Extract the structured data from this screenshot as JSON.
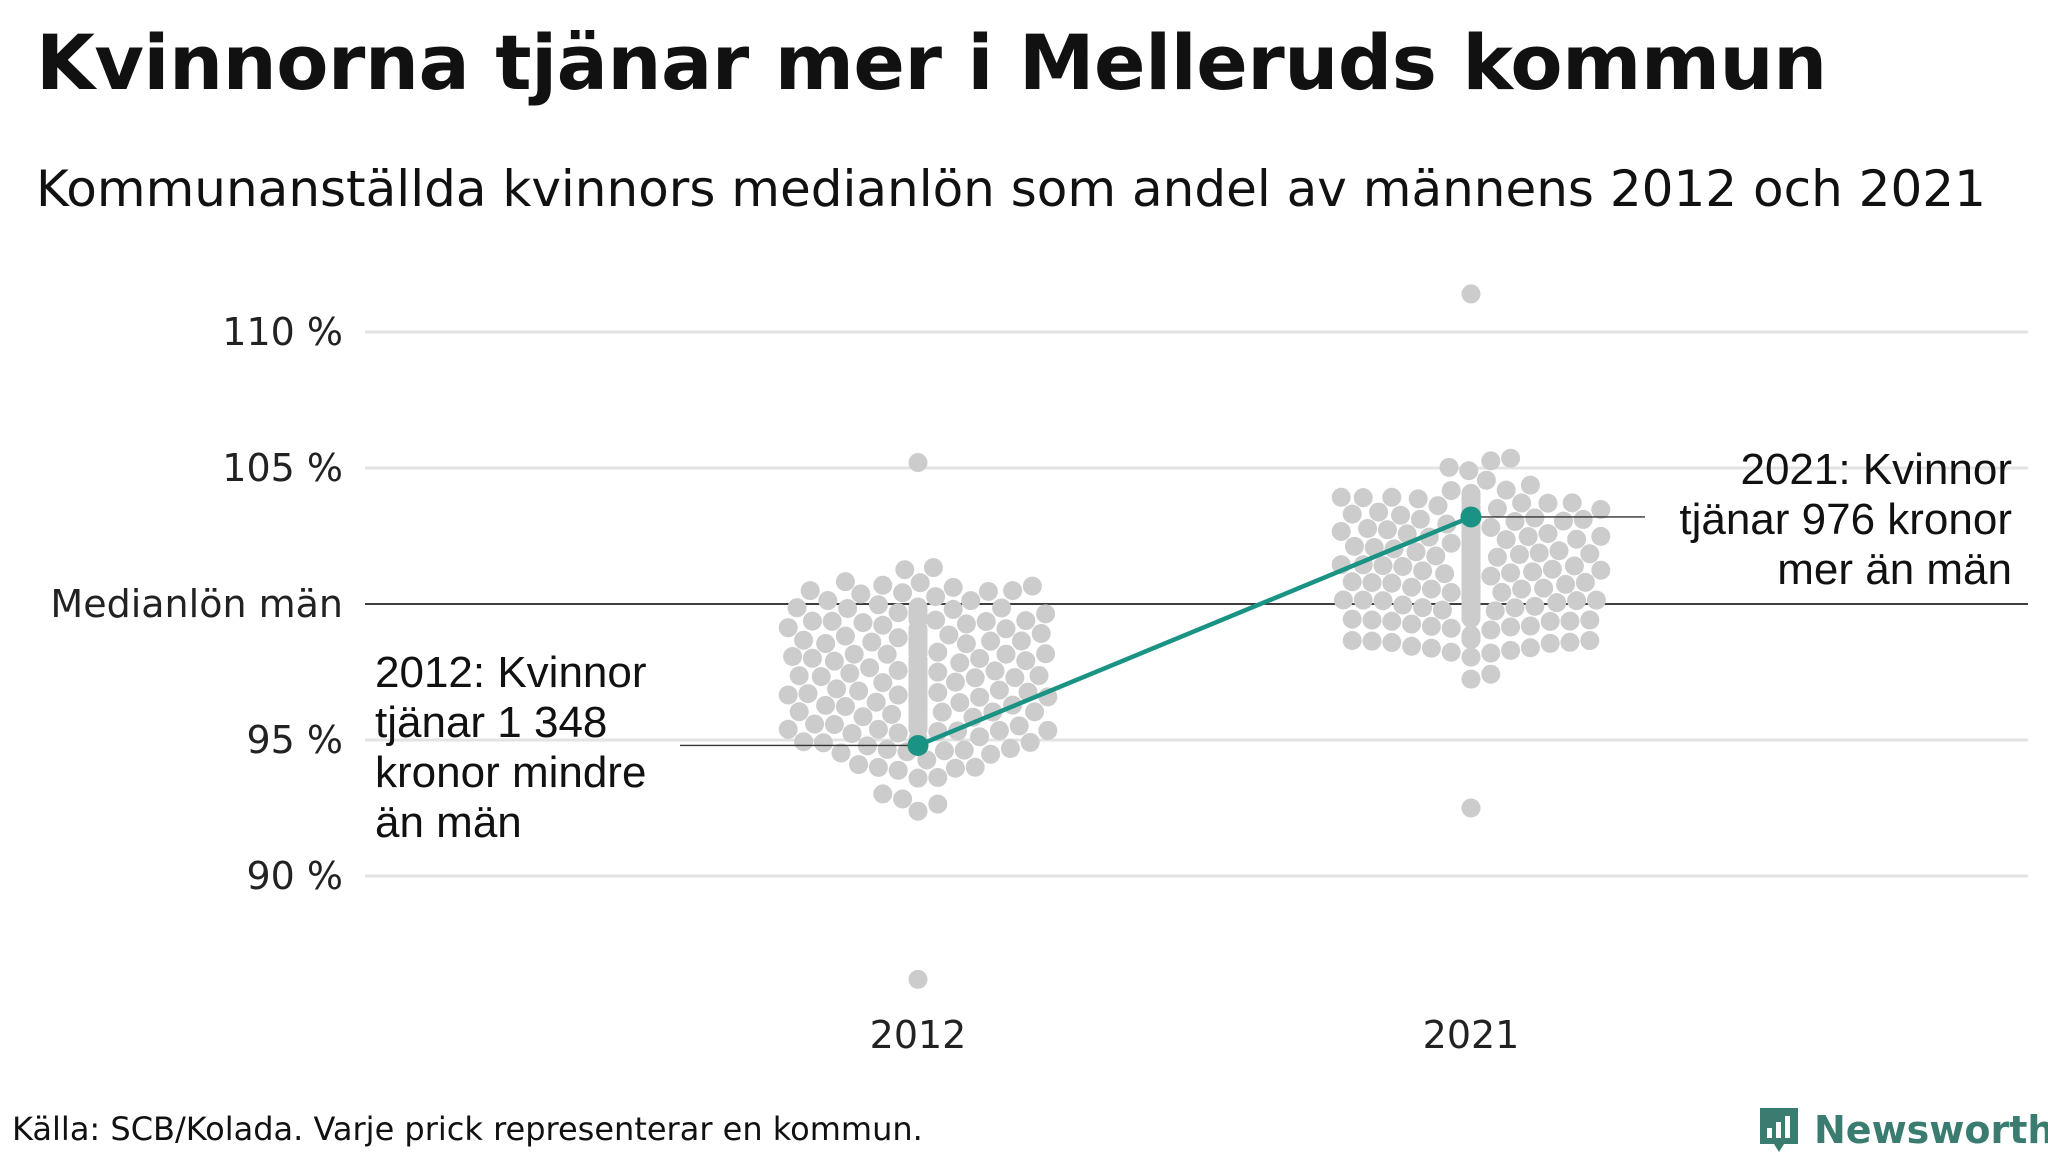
{
  "title": "Kvinnorna tjänar mer i Melleruds kommun",
  "subtitle": "Kommunanställda kvinnors medianlön som andel av männens 2012 och 2021",
  "source": "Källa: SCB/Kolada. Varje prick representerar en kommun.",
  "brand": {
    "name": "Newsworthy",
    "icon": "newsworthy-logo-icon",
    "color": "#3a7d70"
  },
  "colors": {
    "dots": "#cccccc",
    "highlight": "#1a9384",
    "grid": "#e3e3e3",
    "reference": "#222222"
  },
  "chart_data": {
    "type": "scatter",
    "categories": [
      "2012",
      "2021"
    ],
    "y_tick_labels": [
      "110 %",
      "105 %",
      "Medianlön män",
      "95 %",
      "90 %"
    ],
    "y_ticks": [
      110,
      105,
      100,
      95,
      90
    ],
    "ylim": [
      85,
      112
    ],
    "reference_line": {
      "value": 100,
      "label": "Medianlön män"
    },
    "distribution": [
      {
        "category": "2012",
        "count": 290,
        "median": 97.3,
        "sd": 2.4,
        "min": 86.2,
        "max": 105.2
      },
      {
        "category": "2021",
        "count": 290,
        "median": 101.2,
        "sd": 2.3,
        "min": 92.5,
        "max": 111.4
      }
    ],
    "highlight": {
      "name": "Melleruds kommun",
      "values": [
        {
          "x": "2012",
          "y": 94.8
        },
        {
          "x": "2021",
          "y": 103.2
        }
      ]
    },
    "annotations": [
      {
        "x": "2012",
        "y": 94.8,
        "lines": [
          "2012: Kvinnor",
          "tjänar 1 348",
          "kronor mindre",
          "än män"
        ]
      },
      {
        "x": "2021",
        "y": 103.2,
        "lines": [
          "2021: Kvinnor",
          "tjänar 976 kronor",
          "mer än män"
        ]
      }
    ]
  }
}
